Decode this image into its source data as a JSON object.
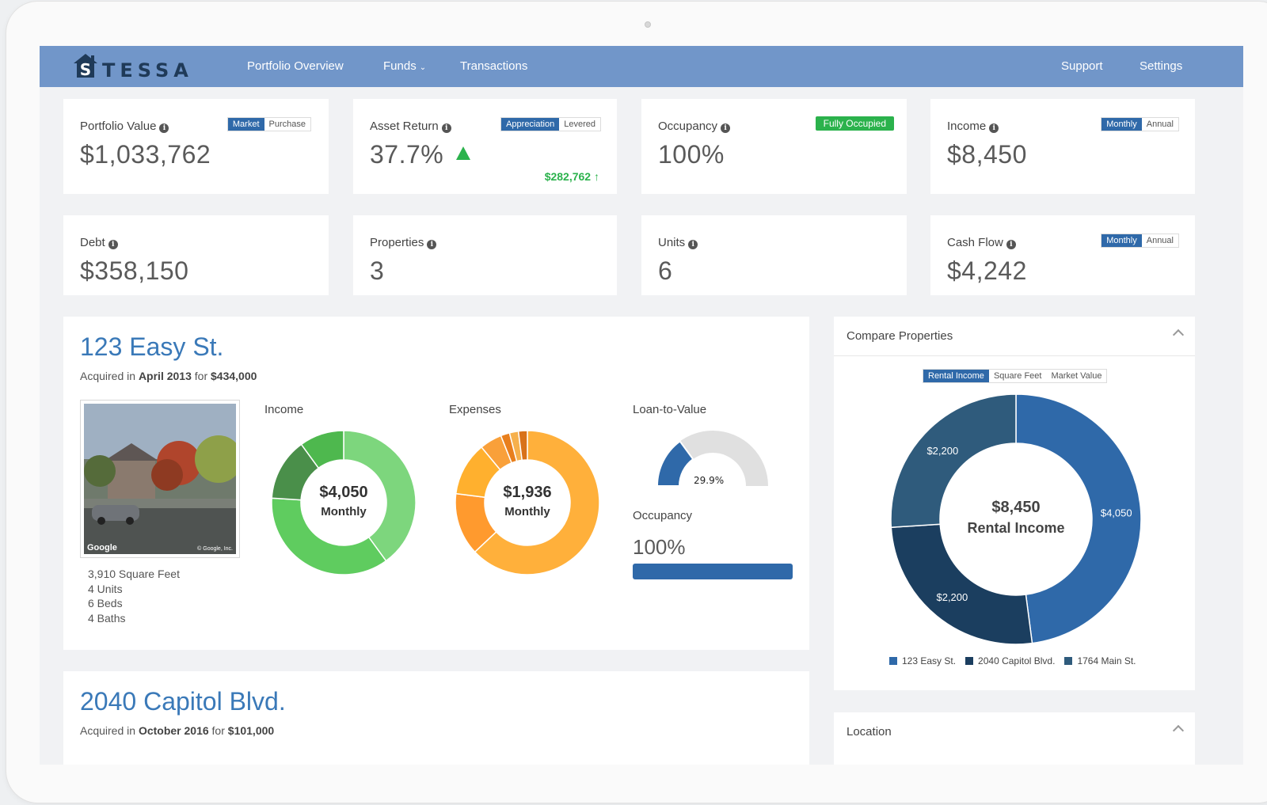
{
  "nav": {
    "logo_letter": "S",
    "logo_text": "TESSA",
    "items": [
      {
        "label": "Portfolio Overview"
      },
      {
        "label": "Funds",
        "has_dropdown": true
      },
      {
        "label": "Transactions"
      }
    ],
    "right_items": [
      {
        "label": "Support"
      },
      {
        "label": "Settings"
      }
    ]
  },
  "kpis": {
    "portfolio_value": {
      "label": "Portfolio Value",
      "value": "$1,033,762",
      "toggle": [
        "Market",
        "Purchase"
      ],
      "active": "Market"
    },
    "asset_return": {
      "label": "Asset Return",
      "value": "37.7%",
      "toggle": [
        "Appreciation",
        "Levered"
      ],
      "active": "Appreciation",
      "amount": "$282,762 ↑",
      "trend": "up"
    },
    "occupancy": {
      "label": "Occupancy",
      "value": "100%",
      "badge": "Fully Occupied"
    },
    "income": {
      "label": "Income",
      "value": "$8,450",
      "toggle": [
        "Monthly",
        "Annual"
      ],
      "active": "Monthly"
    },
    "debt": {
      "label": "Debt",
      "value": "$358,150"
    },
    "properties": {
      "label": "Properties",
      "value": "3"
    },
    "units": {
      "label": "Units",
      "value": "6"
    },
    "cash_flow": {
      "label": "Cash Flow",
      "value": "$4,242",
      "toggle": [
        "Monthly",
        "Annual"
      ],
      "active": "Monthly"
    }
  },
  "property": {
    "title": "123 Easy St.",
    "acq_prefix": "Acquired in ",
    "acq_date": "April 2013",
    "acq_mid": " for ",
    "acq_price": "$434,000",
    "photo_watermark": "Google",
    "photo_copyright": "© Google, Inc.",
    "details": [
      "3,910 Square Feet",
      "4 Units",
      "6 Beds",
      "4 Baths"
    ],
    "income": {
      "label": "Income",
      "center_value": "$4,050",
      "center_sub": "Monthly",
      "segments": [
        {
          "value": 0.4,
          "color": "#7dd67d"
        },
        {
          "value": 0.36,
          "color": "#5fcc5f"
        },
        {
          "value": 0.14,
          "color": "#4a8f4a"
        },
        {
          "value": 0.1,
          "color": "#4eb84e"
        }
      ]
    },
    "expenses": {
      "label": "Expenses",
      "center_value": "$1,936",
      "center_sub": "Monthly",
      "segments": [
        {
          "value": 0.63,
          "color": "#ffb03b"
        },
        {
          "value": 0.14,
          "color": "#ff9a2e"
        },
        {
          "value": 0.12,
          "color": "#ffb02e"
        },
        {
          "value": 0.05,
          "color": "#f9a03a"
        },
        {
          "value": 0.02,
          "color": "#e87f1d"
        },
        {
          "value": 0.02,
          "color": "#f6b04c"
        },
        {
          "value": 0.02,
          "color": "#d8721a"
        }
      ]
    },
    "ltv": {
      "label": "Loan-to-Value",
      "value_text": "29.9%",
      "fraction": 0.299,
      "fill_color": "#2f69a9",
      "track_color": "#e0e0e0"
    },
    "occupancy": {
      "label": "Occupancy",
      "value": "100%",
      "fraction": 1.0
    }
  },
  "property2": {
    "title": "2040 Capitol Blvd.",
    "acq_prefix": "Acquired in ",
    "acq_date": "October 2016",
    "acq_mid": " for ",
    "acq_price": "$101,000"
  },
  "compare": {
    "title": "Compare Properties",
    "toggle": [
      "Rental Income",
      "Square Feet",
      "Market Value"
    ],
    "active": "Rental Income",
    "center_value": "$8,450",
    "center_sub": "Rental Income"
  },
  "location": {
    "title": "Location"
  },
  "chart_data": {
    "type": "pie",
    "categories": [
      "123 Easy St.",
      "2040 Capitol Blvd.",
      "1764 Main St."
    ],
    "values": [
      4050,
      2200,
      2200
    ],
    "value_labels": [
      "$4,050",
      "$2,200",
      "$2,200"
    ],
    "colors": [
      "#2f69a9",
      "#1b3e5f",
      "#2f5b7c"
    ],
    "legend_position": "bottom"
  }
}
